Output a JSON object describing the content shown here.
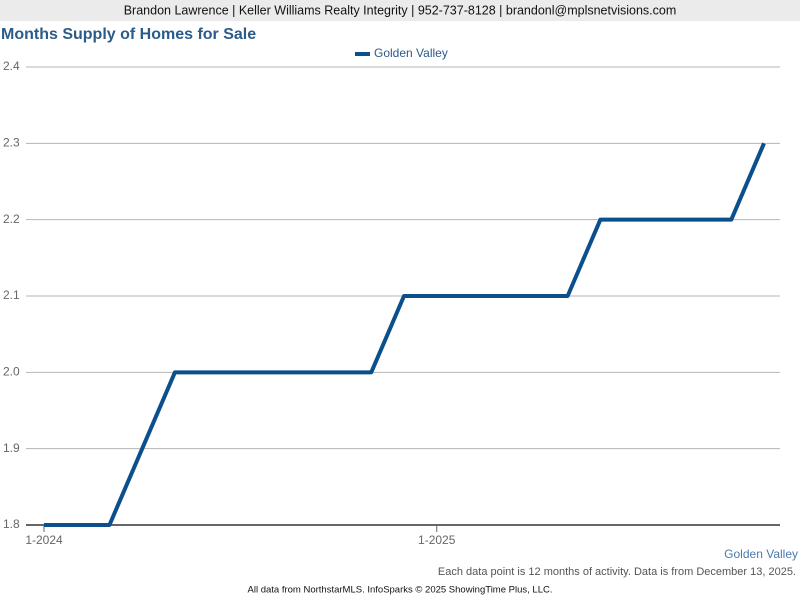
{
  "chart_data": {
    "type": "line",
    "header": "Brandon Lawrence | Keller Williams Realty Integrity | 952-737-8128 | brandonl@mplsnetvisions.com",
    "title": "Months Supply of Homes for Sale",
    "categories": [
      "1-2024",
      null,
      null,
      null,
      null,
      null,
      null,
      null,
      null,
      null,
      null,
      null,
      "1-2025",
      null,
      null,
      null,
      null,
      null,
      null,
      null,
      null,
      null,
      null
    ],
    "series": [
      {
        "name": "Golden Valley",
        "color": "#0b4f8c",
        "values": [
          1.8,
          1.8,
          1.8,
          1.9,
          2.0,
          2.0,
          2.0,
          2.0,
          2.0,
          2.0,
          2.0,
          2.1,
          2.1,
          2.1,
          2.1,
          2.1,
          2.1,
          2.2,
          2.2,
          2.2,
          2.2,
          2.2,
          2.3
        ]
      }
    ],
    "ylim": [
      1.8,
      2.4
    ],
    "yticks": [
      1.8,
      1.9,
      {
        "value": 2.0,
        "label": "2.0"
      },
      2.1,
      2.2,
      2.3,
      2.4
    ],
    "grid": true,
    "note": "Each data point is 12 months of activity. Data is from December 13, 2025.",
    "source": "All data from NorthstarMLS. InfoSparks © 2025 ShowingTime Plus, LLC."
  }
}
